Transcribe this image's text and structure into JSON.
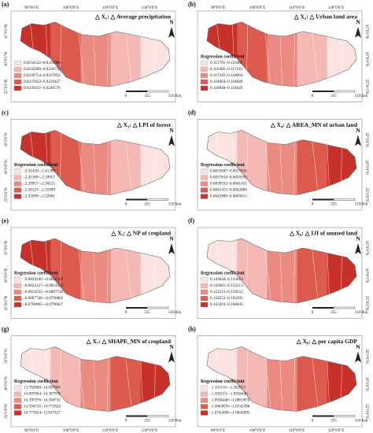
{
  "panels": [
    {
      "label": "(a)",
      "title": "△ X₁: △ Average precipitation",
      "legend": [
        "0.0234522~0.0235686",
        "0.0235686~0.0236754",
        "0.0236754~0.0237822",
        "0.0237822~0.0239437",
        "0.0239437~0.0240576"
      ]
    },
    {
      "label": "(b)",
      "title": "△ X₂: △ Urban land area",
      "legend_title": "Regression coefficient",
      "legend": [
        "0.115765~0.116485",
        "0.116485~0.117245",
        "0.117245~0.118064",
        "0.118064~0.118840",
        "0.118840~0.119429"
      ]
    },
    {
      "label": "(c)",
      "title": "△ X₃: △ LPI of forest",
      "legend_title": "Regression coefficient",
      "legend": [
        "-2.41420~-2.41389",
        "-2.41389~-2.39957",
        "-2.39957~-2.38125",
        "-2.38125~-2.35999",
        "-2.35999~-2.32001"
      ]
    },
    {
      "label": "(d)",
      "title": "△ X₄: △ AREA_MN  of urban land",
      "legend_title": "Regression coefficient",
      "legend": [
        "0.0033947~0.0037816",
        "0.0037816~0.0039592",
        "0.0039592~0.0041455",
        "0.0041455~0.0042880",
        "0.0042880~0.0045813"
      ]
    },
    {
      "label": "(e)",
      "title": "△ X₅: △ NP of cropland",
      "legend_title": "Regression coefficient",
      "legend": [
        "-0.0829346~-0.0822127",
        "-0.0822127~-0.0814552",
        "-0.0814552~-0.0807746",
        "-0.0807746~-0.0798805",
        "-0.0798805~-0.0790627"
      ]
    },
    {
      "label": "(f)",
      "title": "△ X₆: △ IJI of unused land",
      "legend_title": "Regression coefficient",
      "legend": [
        "0.143644~0.143665",
        "0.143665~0.152213",
        "0.152213~0.158552",
        "0.158552~0.163391",
        "0.163391~0.168445"
      ]
    },
    {
      "label": "(g)",
      "title": "△ X₇: △ SHAPE_MN of cropland",
      "legend_title": "Regression coefficient",
      "legend": [
        "13.782080~14.097904",
        "14.097904~14.397976",
        "14.397976~14.594735",
        "14.594735~14.771824",
        "14.771824~15.037427"
      ]
    },
    {
      "label": "(h)",
      "title": "△ X₈: △ per capita GDP",
      "legend_title": "Regression coefficient",
      "legend": [
        "-1.101116~-1.102013",
        "-1.102013~-1.0936440",
        "-1.0936440~-1.0863870",
        "-1.0863870~-1.0742490",
        "-1.0742490~-1.0642095"
      ]
    }
  ],
  "colors": [
    "#fbe3e1",
    "#f4b9b4",
    "#ea8a80",
    "#dc5a4e",
    "#c8302a"
  ],
  "longitude_labels": [
    "90°0'0\"E",
    "100°0'0\"E",
    "110°0'0\"E",
    "120°0'0\"E"
  ],
  "latitude_labels": [
    "35°0'0\"N",
    "30°0'0\"N",
    "25°0'0\"N"
  ],
  "north": "N",
  "scale": [
    "0",
    "255",
    "510 Km"
  ]
}
